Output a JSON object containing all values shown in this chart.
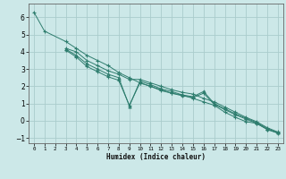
{
  "xlabel": "Humidex (Indice chaleur)",
  "ylabel": "",
  "bg_color": "#cce8e8",
  "grid_color": "#aacccc",
  "line_color": "#2e7d6e",
  "xlim": [
    -0.5,
    23.5
  ],
  "ylim": [
    -1.3,
    6.8
  ],
  "yticks": [
    -1,
    0,
    1,
    2,
    3,
    4,
    5,
    6
  ],
  "xticks": [
    0,
    1,
    2,
    3,
    4,
    5,
    6,
    7,
    8,
    9,
    10,
    11,
    12,
    13,
    14,
    15,
    16,
    17,
    18,
    19,
    20,
    21,
    22,
    23
  ],
  "series": [
    {
      "x": [
        0,
        1,
        3,
        4,
        5,
        6,
        7,
        8,
        9,
        10,
        11,
        12,
        13,
        14,
        15,
        16,
        17,
        18,
        19,
        20,
        21,
        22,
        23
      ],
      "y": [
        6.3,
        5.2,
        4.6,
        4.2,
        3.8,
        3.5,
        3.2,
        2.8,
        2.5,
        2.2,
        2.0,
        1.8,
        1.6,
        1.5,
        1.3,
        1.1,
        0.9,
        0.5,
        0.2,
        -0.05,
        -0.15,
        -0.5,
        -0.7
      ],
      "marker": "+"
    },
    {
      "x": [
        3,
        4,
        5,
        6,
        7,
        8,
        9,
        10,
        11,
        12,
        13,
        14,
        15,
        16,
        17,
        18,
        19,
        20,
        21,
        22,
        23
      ],
      "y": [
        4.2,
        4.0,
        3.5,
        3.2,
        2.9,
        2.7,
        2.4,
        2.4,
        2.2,
        2.0,
        1.8,
        1.65,
        1.55,
        1.3,
        1.1,
        0.8,
        0.5,
        0.2,
        -0.05,
        -0.4,
        -0.65
      ],
      "marker": "+"
    },
    {
      "x": [
        3,
        4,
        5,
        6,
        7,
        8,
        9,
        10,
        11,
        12,
        13,
        14,
        15,
        16,
        17,
        18,
        19,
        20,
        21,
        22,
        23
      ],
      "y": [
        4.15,
        3.8,
        3.3,
        3.0,
        2.7,
        2.5,
        0.85,
        2.3,
        2.1,
        1.85,
        1.7,
        1.5,
        1.4,
        1.7,
        1.0,
        0.7,
        0.4,
        0.15,
        -0.1,
        -0.45,
        -0.7
      ],
      "marker": "^"
    },
    {
      "x": [
        3,
        4,
        5,
        6,
        7,
        8,
        9,
        10,
        11,
        12,
        13,
        14,
        15,
        16,
        17,
        18,
        19,
        20,
        21,
        22,
        23
      ],
      "y": [
        4.1,
        3.7,
        3.15,
        2.85,
        2.55,
        2.35,
        0.9,
        2.2,
        2.0,
        1.75,
        1.6,
        1.45,
        1.35,
        1.6,
        0.95,
        0.65,
        0.35,
        0.1,
        -0.15,
        -0.5,
        -0.72
      ],
      "marker": "+"
    }
  ]
}
